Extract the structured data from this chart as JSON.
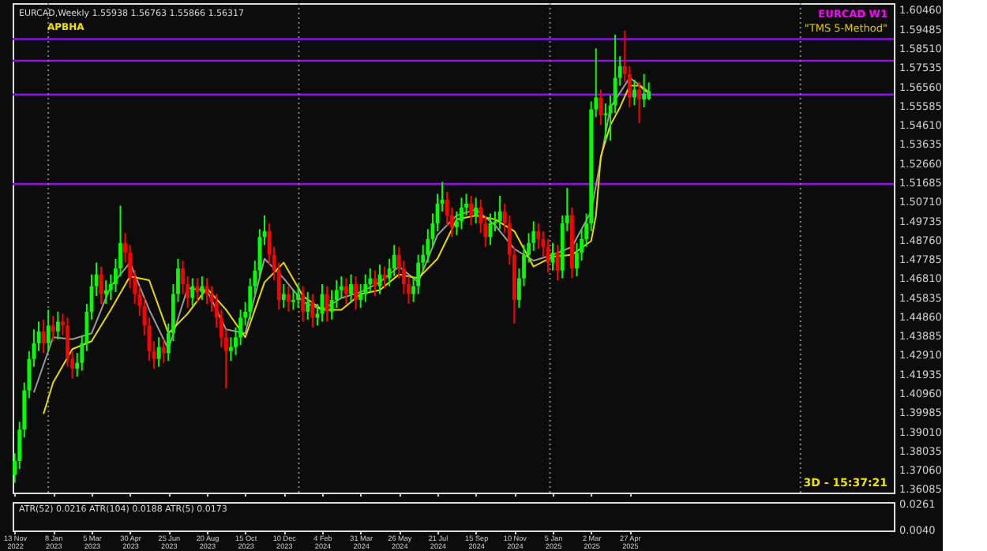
{
  "chart_data": [
    {
      "type": "candlestick",
      "x": [
        "2022-11-13",
        "2022-11-20",
        "2022-11-27",
        "2022-12-04",
        "2022-12-11",
        "2022-12-18",
        "2022-12-25",
        "2023-01-01",
        "2023-01-08",
        "2023-01-15",
        "2023-01-22",
        "2023-01-29",
        "2023-02-05",
        "2023-02-12",
        "2023-02-19",
        "2023-02-26",
        "2023-03-05",
        "2023-03-12",
        "2023-03-19",
        "2023-03-26",
        "2023-04-02",
        "2023-04-09",
        "2023-04-16",
        "2023-04-23",
        "2023-04-30",
        "2023-05-07",
        "2023-05-14",
        "2023-05-21",
        "2023-05-28",
        "2023-06-04",
        "2023-06-11",
        "2023-06-18",
        "2023-06-25",
        "2023-07-02",
        "2023-07-09",
        "2023-07-16",
        "2023-07-23",
        "2023-07-30",
        "2023-08-06",
        "2023-08-13",
        "2023-08-20",
        "2023-08-27",
        "2023-09-03",
        "2023-09-10",
        "2023-09-17",
        "2023-09-24",
        "2023-10-01",
        "2023-10-08",
        "2023-10-15",
        "2023-10-22",
        "2023-10-29",
        "2023-11-05",
        "2023-11-12",
        "2023-11-19",
        "2023-11-26",
        "2023-12-03",
        "2023-12-10",
        "2023-12-17",
        "2023-12-24",
        "2023-12-31",
        "2024-01-07",
        "2024-01-14",
        "2024-01-21",
        "2024-01-28",
        "2024-02-04",
        "2024-02-11",
        "2024-02-18",
        "2024-02-25",
        "2024-03-03",
        "2024-03-10",
        "2024-03-17",
        "2024-03-24",
        "2024-03-31",
        "2024-04-07",
        "2024-04-14",
        "2024-04-21",
        "2024-04-28",
        "2024-05-05",
        "2024-05-12",
        "2024-05-19",
        "2024-05-26",
        "2024-06-02",
        "2024-06-09",
        "2024-06-16",
        "2024-06-23",
        "2024-06-30",
        "2024-07-07",
        "2024-07-14",
        "2024-07-21",
        "2024-07-28",
        "2024-08-04",
        "2024-08-11",
        "2024-08-18",
        "2024-08-25",
        "2024-09-01",
        "2024-09-08",
        "2024-09-15",
        "2024-09-22",
        "2024-09-29",
        "2024-10-06",
        "2024-10-13",
        "2024-10-20",
        "2024-10-27",
        "2024-11-03",
        "2024-11-10",
        "2024-11-17",
        "2024-11-24",
        "2024-12-01",
        "2024-12-08",
        "2024-12-15",
        "2024-12-22",
        "2024-12-29",
        "2025-01-05",
        "2025-01-12",
        "2025-01-19",
        "2025-01-26",
        "2025-02-02",
        "2025-02-09",
        "2025-02-16",
        "2025-02-23",
        "2025-03-02",
        "2025-03-09",
        "2025-03-16",
        "2025-03-23",
        "2025-03-30",
        "2025-04-06",
        "2025-04-13",
        "2025-04-20",
        "2025-04-27",
        "2025-05-04",
        "2025-05-11",
        "2025-05-18",
        "2025-05-25"
      ],
      "ohlc": [
        [
          1.368,
          1.379,
          1.364,
          1.375
        ],
        [
          1.375,
          1.395,
          1.371,
          1.391
        ],
        [
          1.391,
          1.415,
          1.387,
          1.411
        ],
        [
          1.411,
          1.431,
          1.407,
          1.427
        ],
        [
          1.427,
          1.442,
          1.423,
          1.435
        ],
        [
          1.435,
          1.446,
          1.431,
          1.441
        ],
        [
          1.441,
          1.447,
          1.43,
          1.435
        ],
        [
          1.435,
          1.452,
          1.431,
          1.444
        ],
        [
          1.444,
          1.449,
          1.436,
          1.441
        ],
        [
          1.441,
          1.451,
          1.437,
          1.446
        ],
        [
          1.446,
          1.45,
          1.439,
          1.444
        ],
        [
          1.444,
          1.448,
          1.423,
          1.427
        ],
        [
          1.427,
          1.431,
          1.417,
          1.422
        ],
        [
          1.422,
          1.43,
          1.418,
          1.425
        ],
        [
          1.425,
          1.439,
          1.421,
          1.435
        ],
        [
          1.435,
          1.455,
          1.431,
          1.451
        ],
        [
          1.451,
          1.47,
          1.447,
          1.464
        ],
        [
          1.464,
          1.476,
          1.459,
          1.47
        ],
        [
          1.47,
          1.474,
          1.455,
          1.46
        ],
        [
          1.46,
          1.467,
          1.455,
          1.462
        ],
        [
          1.462,
          1.47,
          1.457,
          1.465
        ],
        [
          1.465,
          1.478,
          1.461,
          1.473
        ],
        [
          1.473,
          1.505,
          1.469,
          1.486
        ],
        [
          1.486,
          1.491,
          1.476,
          1.481
        ],
        [
          1.481,
          1.485,
          1.463,
          1.468
        ],
        [
          1.468,
          1.472,
          1.455,
          1.46
        ],
        [
          1.46,
          1.464,
          1.449,
          1.454
        ],
        [
          1.454,
          1.458,
          1.439,
          1.444
        ],
        [
          1.444,
          1.448,
          1.426,
          1.431
        ],
        [
          1.431,
          1.436,
          1.422,
          1.427
        ],
        [
          1.427,
          1.438,
          1.423,
          1.433
        ],
        [
          1.433,
          1.437,
          1.425,
          1.43
        ],
        [
          1.43,
          1.445,
          1.426,
          1.44
        ],
        [
          1.44,
          1.465,
          1.436,
          1.46
        ],
        [
          1.46,
          1.478,
          1.456,
          1.473
        ],
        [
          1.473,
          1.477,
          1.46,
          1.465
        ],
        [
          1.465,
          1.469,
          1.453,
          1.458
        ],
        [
          1.458,
          1.468,
          1.454,
          1.464
        ],
        [
          1.464,
          1.468,
          1.456,
          1.461
        ],
        [
          1.461,
          1.469,
          1.457,
          1.464
        ],
        [
          1.464,
          1.468,
          1.455,
          1.46
        ],
        [
          1.46,
          1.464,
          1.451,
          1.456
        ],
        [
          1.456,
          1.46,
          1.443,
          1.448
        ],
        [
          1.448,
          1.452,
          1.433,
          1.438
        ],
        [
          1.438,
          1.442,
          1.412,
          1.431
        ],
        [
          1.431,
          1.438,
          1.426,
          1.433
        ],
        [
          1.433,
          1.443,
          1.429,
          1.438
        ],
        [
          1.438,
          1.452,
          1.434,
          1.448
        ],
        [
          1.448,
          1.456,
          1.444,
          1.451
        ],
        [
          1.451,
          1.468,
          1.447,
          1.464
        ],
        [
          1.464,
          1.477,
          1.46,
          1.472
        ],
        [
          1.472,
          1.493,
          1.468,
          1.489
        ],
        [
          1.489,
          1.5,
          1.485,
          1.492
        ],
        [
          1.492,
          1.496,
          1.475,
          1.48
        ],
        [
          1.48,
          1.484,
          1.467,
          1.472
        ],
        [
          1.472,
          1.476,
          1.452,
          1.457
        ],
        [
          1.457,
          1.465,
          1.453,
          1.46
        ],
        [
          1.46,
          1.464,
          1.451,
          1.456
        ],
        [
          1.456,
          1.462,
          1.452,
          1.457
        ],
        [
          1.457,
          1.465,
          1.453,
          1.46
        ],
        [
          1.46,
          1.464,
          1.446,
          1.451
        ],
        [
          1.451,
          1.461,
          1.447,
          1.456
        ],
        [
          1.456,
          1.46,
          1.443,
          1.448
        ],
        [
          1.448,
          1.455,
          1.444,
          1.45
        ],
        [
          1.45,
          1.465,
          1.446,
          1.46
        ],
        [
          1.46,
          1.464,
          1.446,
          1.451
        ],
        [
          1.451,
          1.462,
          1.447,
          1.457
        ],
        [
          1.457,
          1.467,
          1.453,
          1.462
        ],
        [
          1.462,
          1.469,
          1.458,
          1.464
        ],
        [
          1.464,
          1.468,
          1.455,
          1.46
        ],
        [
          1.46,
          1.47,
          1.456,
          1.465
        ],
        [
          1.465,
          1.469,
          1.452,
          1.457
        ],
        [
          1.457,
          1.465,
          1.453,
          1.46
        ],
        [
          1.46,
          1.47,
          1.456,
          1.465
        ],
        [
          1.465,
          1.473,
          1.461,
          1.468
        ],
        [
          1.468,
          1.472,
          1.459,
          1.464
        ],
        [
          1.464,
          1.475,
          1.46,
          1.47
        ],
        [
          1.47,
          1.474,
          1.463,
          1.468
        ],
        [
          1.468,
          1.478,
          1.464,
          1.473
        ],
        [
          1.473,
          1.485,
          1.469,
          1.48
        ],
        [
          1.48,
          1.484,
          1.468,
          1.473
        ],
        [
          1.473,
          1.477,
          1.46,
          1.465
        ],
        [
          1.465,
          1.469,
          1.455,
          1.46
        ],
        [
          1.46,
          1.469,
          1.456,
          1.464
        ],
        [
          1.464,
          1.48,
          1.46,
          1.476
        ],
        [
          1.476,
          1.485,
          1.472,
          1.48
        ],
        [
          1.48,
          1.493,
          1.476,
          1.488
        ],
        [
          1.488,
          1.501,
          1.484,
          1.496
        ],
        [
          1.496,
          1.511,
          1.492,
          1.506
        ],
        [
          1.506,
          1.517,
          1.502,
          1.508
        ],
        [
          1.508,
          1.512,
          1.495,
          1.5
        ],
        [
          1.5,
          1.504,
          1.489,
          1.494
        ],
        [
          1.494,
          1.502,
          1.49,
          1.497
        ],
        [
          1.497,
          1.509,
          1.493,
          1.504
        ],
        [
          1.504,
          1.511,
          1.5,
          1.506
        ],
        [
          1.506,
          1.51,
          1.495,
          1.5
        ],
        [
          1.5,
          1.509,
          1.496,
          1.504
        ],
        [
          1.504,
          1.508,
          1.491,
          1.496
        ],
        [
          1.496,
          1.5,
          1.484,
          1.489
        ],
        [
          1.489,
          1.501,
          1.485,
          1.496
        ],
        [
          1.496,
          1.502,
          1.492,
          1.497
        ],
        [
          1.497,
          1.51,
          1.493,
          1.502
        ],
        [
          1.502,
          1.506,
          1.491,
          1.496
        ],
        [
          1.496,
          1.5,
          1.475,
          1.48
        ],
        [
          1.48,
          1.484,
          1.445,
          1.457
        ],
        [
          1.457,
          1.473,
          1.453,
          1.468
        ],
        [
          1.468,
          1.485,
          1.464,
          1.48
        ],
        [
          1.48,
          1.491,
          1.476,
          1.486
        ],
        [
          1.486,
          1.497,
          1.482,
          1.492
        ],
        [
          1.492,
          1.496,
          1.483,
          1.488
        ],
        [
          1.488,
          1.492,
          1.479,
          1.484
        ],
        [
          1.484,
          1.488,
          1.471,
          1.476
        ],
        [
          1.476,
          1.486,
          1.472,
          1.481
        ],
        [
          1.481,
          1.485,
          1.467,
          1.472
        ],
        [
          1.472,
          1.5,
          1.468,
          1.496
        ],
        [
          1.496,
          1.514,
          1.492,
          1.5
        ],
        [
          1.5,
          1.504,
          1.468,
          1.473
        ],
        [
          1.473,
          1.486,
          1.469,
          1.481
        ],
        [
          1.481,
          1.493,
          1.477,
          1.488
        ],
        [
          1.488,
          1.501,
          1.484,
          1.496
        ],
        [
          1.496,
          1.558,
          1.492,
          1.554
        ],
        [
          1.554,
          1.585,
          1.55,
          1.56
        ],
        [
          1.56,
          1.564,
          1.546,
          1.551
        ],
        [
          1.551,
          1.557,
          1.538,
          1.552
        ],
        [
          1.552,
          1.561,
          1.538,
          1.556
        ],
        [
          1.556,
          1.592,
          1.552,
          1.57
        ],
        [
          1.57,
          1.581,
          1.566,
          1.576
        ],
        [
          1.576,
          1.594,
          1.568,
          1.572
        ],
        [
          1.572,
          1.576,
          1.555,
          1.56
        ],
        [
          1.56,
          1.569,
          1.556,
          1.564
        ],
        [
          1.564,
          1.568,
          1.547,
          1.559
        ],
        [
          1.559,
          1.572,
          1.555,
          1.562
        ],
        [
          1.55938,
          1.56763,
          1.55866,
          1.56317
        ]
      ],
      "colors": [
        "#00ff00",
        "#00ff00",
        "#00ff00",
        "#00ff00",
        "#00ff00",
        "#00ff00",
        "#ff0000",
        "#00ff00",
        "#ff0000",
        "#00ff00",
        "#ff0000",
        "#ff0000",
        "#ff0000",
        "#00ff00",
        "#00ff00",
        "#00ff00",
        "#00ff00",
        "#00ff00",
        "#ff0000",
        "#00ff00",
        "#00ff00",
        "#00ff00",
        "#00ff00",
        "#ff0000",
        "#ff0000",
        "#ff0000",
        "#ff0000",
        "#ff0000",
        "#ff0000",
        "#ff0000",
        "#00ff00",
        "#ff0000",
        "#00ff00",
        "#00ff00",
        "#00ff00",
        "#ff0000",
        "#ff0000",
        "#00ff00",
        "#ff0000",
        "#00ff00",
        "#ff0000",
        "#ff0000",
        "#ff0000",
        "#ff0000",
        "#ff0000",
        "#00ff00",
        "#00ff00",
        "#00ff00",
        "#00ff00",
        "#00ff00",
        "#00ff00",
        "#00ff00",
        "#00ff00",
        "#ff0000",
        "#ff0000",
        "#ff0000",
        "#00ff00",
        "#ff0000",
        "#00ff00",
        "#00ff00",
        "#ff0000",
        "#00ff00",
        "#ff0000",
        "#00ff00",
        "#00ff00",
        "#ff0000",
        "#00ff00",
        "#00ff00",
        "#00ff00",
        "#ff0000",
        "#00ff00",
        "#ff0000",
        "#00ff00",
        "#00ff00",
        "#00ff00",
        "#ff0000",
        "#00ff00",
        "#ff0000",
        "#00ff00",
        "#00ff00",
        "#ff0000",
        "#ff0000",
        "#ff0000",
        "#00ff00",
        "#00ff00",
        "#00ff00",
        "#00ff00",
        "#00ff00",
        "#00ff00",
        "#00ff00",
        "#ff0000",
        "#ff0000",
        "#00ff00",
        "#00ff00",
        "#00ff00",
        "#ff0000",
        "#00ff00",
        "#ff0000",
        "#ff0000",
        "#00ff00",
        "#00ff00",
        "#00ff00",
        "#ff0000",
        "#ff0000",
        "#ff0000",
        "#00ff00",
        "#00ff00",
        "#00ff00",
        "#00ff00",
        "#ff0000",
        "#ff0000",
        "#ff0000",
        "#00ff00",
        "#ff0000",
        "#00ff00",
        "#00ff00",
        "#ff0000",
        "#00ff00",
        "#00ff00",
        "#00ff00",
        "#00ff00",
        "#00ff00",
        "#ff0000",
        "#00ff00",
        "#00ff00",
        "#00ff00",
        "#00ff00",
        "#ff0000",
        "#ff0000",
        "#00ff00",
        "#ff0000",
        "#00ff00",
        "#00ff00"
      ],
      "series": [
        {
          "type": "line",
          "color": "#9a9a9a",
          "x": [
            "2022-12-11",
            "2023-01-08",
            "2023-02-05",
            "2023-03-05",
            "2023-04-02",
            "2023-04-30",
            "2023-05-28",
            "2023-06-25",
            "2023-07-23",
            "2023-08-20",
            "2023-09-17",
            "2023-10-15",
            "2023-11-12",
            "2023-12-10",
            "2024-01-07",
            "2024-02-04",
            "2024-03-03",
            "2024-03-31",
            "2024-04-28",
            "2024-05-26",
            "2024-06-23",
            "2024-07-21",
            "2024-08-18",
            "2024-09-15",
            "2024-10-13",
            "2024-11-10",
            "2024-12-08",
            "2025-01-05",
            "2025-02-02",
            "2025-03-02",
            "2025-03-30",
            "2025-04-27",
            "2025-05-25"
          ],
          "values": [
            1.41,
            1.438,
            1.437,
            1.44,
            1.464,
            1.476,
            1.452,
            1.432,
            1.463,
            1.462,
            1.442,
            1.44,
            1.478,
            1.468,
            1.456,
            1.452,
            1.458,
            1.461,
            1.466,
            1.474,
            1.466,
            1.49,
            1.5,
            1.503,
            1.495,
            1.483,
            1.477,
            1.48,
            1.484,
            1.502,
            1.555,
            1.57,
            1.563
          ]
        },
        {
          "type": "line",
          "color": "#e6d800",
          "x": [
            "2022-12-25",
            "2023-01-08",
            "2023-02-05",
            "2023-03-05",
            "2023-04-02",
            "2023-04-30",
            "2023-05-28",
            "2023-06-25",
            "2023-07-23",
            "2023-08-20",
            "2023-09-17",
            "2023-10-15",
            "2023-11-12",
            "2023-12-10",
            "2024-01-07",
            "2024-02-04",
            "2024-03-03",
            "2024-03-31",
            "2024-04-28",
            "2024-05-26",
            "2024-06-23",
            "2024-07-21",
            "2024-08-18",
            "2024-09-15",
            "2024-10-13",
            "2024-11-10",
            "2024-12-08",
            "2025-01-05",
            "2025-02-02",
            "2025-03-02",
            "2025-03-09",
            "2025-03-16",
            "2025-03-30",
            "2025-04-13",
            "2025-04-27",
            "2025-05-11",
            "2025-05-25"
          ],
          "values": [
            1.399,
            1.415,
            1.432,
            1.436,
            1.452,
            1.469,
            1.467,
            1.44,
            1.45,
            1.463,
            1.452,
            1.438,
            1.466,
            1.476,
            1.459,
            1.452,
            1.452,
            1.46,
            1.462,
            1.47,
            1.468,
            1.478,
            1.498,
            1.5,
            1.498,
            1.492,
            1.474,
            1.479,
            1.48,
            1.487,
            1.5,
            1.53,
            1.546,
            1.555,
            1.566,
            1.566,
            1.562
          ]
        }
      ],
      "xlim": [
        "2022-11-10",
        "2026-05-17"
      ],
      "xticks": [
        {
          "value": "2022-11-13",
          "label": null
        },
        {
          "value": "2023-01-08",
          "label": null
        },
        {
          "value": "2023-03-05",
          "label": null
        },
        {
          "value": "2023-04-30",
          "label": null
        },
        {
          "value": "2023-06-25",
          "label": null
        },
        {
          "value": "2023-08-20",
          "label": null
        },
        {
          "value": "2023-10-15",
          "label": null
        },
        {
          "value": "2023-12-10",
          "label": null
        },
        {
          "value": "2024-02-04",
          "label": null
        },
        {
          "value": "2024-03-31",
          "label": null
        },
        {
          "value": "2024-05-26",
          "label": null
        },
        {
          "value": "2024-07-21",
          "label": null
        },
        {
          "value": "2024-09-15",
          "label": null
        },
        {
          "value": "2024-11-10",
          "label": null
        },
        {
          "value": "2025-01-05",
          "label": null
        },
        {
          "value": "2025-03-02",
          "label": null
        },
        {
          "value": "2025-04-27",
          "label": null
        }
      ],
      "ylim": [
        1.359,
        1.608
      ],
      "yticks": [
        {
          "value": 1.6046,
          "label": "1.60460"
        },
        {
          "value": 1.59485,
          "label": "1.59485"
        },
        {
          "value": 1.5851,
          "label": "1.58510"
        },
        {
          "value": 1.57535,
          "label": "1.57535"
        },
        {
          "value": 1.5656,
          "label": "1.56560"
        },
        {
          "value": 1.55585,
          "label": "1.55585"
        },
        {
          "value": 1.5461,
          "label": "1.54610"
        },
        {
          "value": 1.53635,
          "label": "1.53635"
        },
        {
          "value": 1.5266,
          "label": "1.52660"
        },
        {
          "value": 1.51685,
          "label": "1.51685"
        },
        {
          "value": 1.5071,
          "label": "1.50710"
        },
        {
          "value": 1.49735,
          "label": "1.49735"
        },
        {
          "value": 1.4876,
          "label": "1.48760"
        },
        {
          "value": 1.47785,
          "label": "1.47785"
        },
        {
          "value": 1.4681,
          "label": "1.46810"
        },
        {
          "value": 1.45835,
          "label": "1.45835"
        },
        {
          "value": 1.4486,
          "label": "1.44860"
        },
        {
          "value": 1.43885,
          "label": "1.43885"
        },
        {
          "value": 1.4291,
          "label": "1.42910"
        },
        {
          "value": 1.41935,
          "label": "1.41935"
        },
        {
          "value": 1.4096,
          "label": "1.40960"
        },
        {
          "value": 1.39985,
          "label": "1.39985"
        },
        {
          "value": 1.3901,
          "label": "1.39010"
        },
        {
          "value": 1.38035,
          "label": "1.38035"
        },
        {
          "value": 1.3706,
          "label": "1.37060"
        },
        {
          "value": 1.36085,
          "label": "1.36085"
        }
      ],
      "tick_labels": "y",
      "ref_lines": [
        {
          "axis": "y",
          "value": 1.5897,
          "color": "#8a14d8"
        },
        {
          "axis": "y",
          "value": 1.5787,
          "color": "#8a14d8"
        },
        {
          "axis": "y",
          "value": 1.5615,
          "color": "#8a14d8"
        },
        {
          "axis": "y",
          "value": 1.516,
          "color": "#8a14d8"
        },
        {
          "axis": "x",
          "value": "2023-01-01",
          "color": "#808080",
          "line_style": "dotted"
        },
        {
          "axis": "x",
          "value": "2024-01-01",
          "color": "#808080",
          "line_style": "dotted"
        },
        {
          "axis": "x",
          "value": "2025-01-01",
          "color": "#808080",
          "line_style": "dotted"
        },
        {
          "axis": "x",
          "value": "2026-01-01",
          "color": "#808080",
          "line_style": "dotted"
        }
      ],
      "annotations": [
        "EURCAD,Weekly  1.55938 1.56763 1.55866 1.56317",
        "APBHA",
        "EURCAD W1",
        "\"TMS 5-Method\"",
        "3D - 15:37:21"
      ]
    },
    {
      "type": "line",
      "xlim": [
        "2022-11-10",
        "2026-05-17"
      ],
      "xticks": [
        {
          "value": "2022-11-13",
          "label": "13 Nov 2022"
        },
        {
          "value": "2023-01-08",
          "label": "8 Jan 2023"
        },
        {
          "value": "2023-03-05",
          "label": "5 Mar 2023"
        },
        {
          "value": "2023-04-30",
          "label": "30 Apr 2023"
        },
        {
          "value": "2023-06-25",
          "label": "25 Jun 2023"
        },
        {
          "value": "2023-08-20",
          "label": "20 Aug 2023"
        },
        {
          "value": "2023-10-15",
          "label": "15 Oct 2023"
        },
        {
          "value": "2023-12-10",
          "label": "10 Dec 2023"
        },
        {
          "value": "2024-02-04",
          "label": "4 Feb 2024"
        },
        {
          "value": "2024-03-31",
          "label": "31 Mar 2024"
        },
        {
          "value": "2024-05-26",
          "label": "26 May 2024"
        },
        {
          "value": "2024-07-21",
          "label": "21 Jul 2024"
        },
        {
          "value": "2024-09-15",
          "label": "15 Sep 2024"
        },
        {
          "value": "2024-11-10",
          "label": "10 Nov 2024"
        },
        {
          "value": "2025-01-05",
          "label": "5 Jan 2025"
        },
        {
          "value": "2025-03-02",
          "label": "2 Mar 2025"
        },
        {
          "value": "2025-04-27",
          "label": "27 Apr 2025"
        }
      ],
      "ylim": [
        0.003,
        0.0275
      ],
      "yticks": [
        0.0261,
        {
          "value": 0.004,
          "label": "0.0040"
        }
      ],
      "annotations": [
        "ATR(52) 0.0216  ATR(104) 0.0188  ATR(5) 0.0173"
      ]
    }
  ]
}
